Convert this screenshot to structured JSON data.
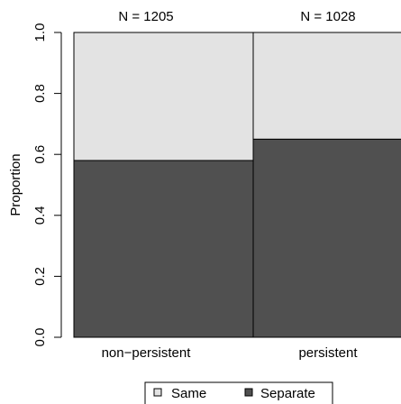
{
  "chart_data": {
    "type": "bar",
    "stacked": true,
    "categories": [
      "non−persistent",
      "persistent"
    ],
    "bar_titles": [
      "N = 1205",
      "N = 1028"
    ],
    "series": [
      {
        "name": "Separate",
        "values": [
          0.58,
          0.65
        ],
        "color": "#505050"
      },
      {
        "name": "Same",
        "values": [
          0.42,
          0.35
        ],
        "color": "#e3e3e3"
      }
    ],
    "ylabel": "Proportion",
    "ylim": [
      0,
      1
    ],
    "yticks": [
      "0.0",
      "0.2",
      "0.4",
      "0.6",
      "0.8",
      "1.0"
    ],
    "legend": {
      "position": "bottom",
      "items": [
        {
          "label": "Same",
          "color": "#e3e3e3"
        },
        {
          "label": "Separate",
          "color": "#505050"
        }
      ]
    },
    "grid": false
  }
}
